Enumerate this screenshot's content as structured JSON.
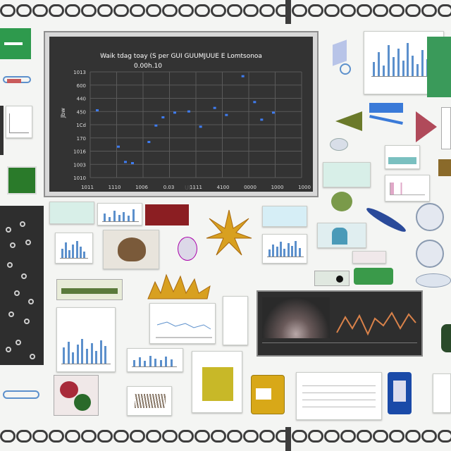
{
  "main_chart": {
    "title_line1": "Waik tdag toay (S per GUI GUUMJUUE E Lomtsonoa",
    "title_line2": "0.00h.10",
    "y_ticks": [
      "1013",
      "600",
      "440",
      "450",
      "1Cd",
      "170",
      "1016",
      "1003",
      "1010"
    ],
    "x_ticks": [
      "1011",
      "1110",
      "1006",
      "0.03",
      "1111",
      "4100",
      "0000",
      "1000",
      "1000"
    ],
    "y_axis_label": "Jbw",
    "x_axis_label": "Ubu",
    "point_color": "#3f7cf0"
  },
  "chart_data": {
    "type": "scatter",
    "title": "Waik tdag toay (S per GUI GUUMJUUE E Lomtsonoa 0.00h.10",
    "xlabel": "Ubu",
    "ylabel": "Jbw",
    "xlim": [
      0,
      9
    ],
    "ylim": [
      0,
      9
    ],
    "points": [
      {
        "x": 0.3,
        "y": 5.7
      },
      {
        "x": 1.2,
        "y": 2.6
      },
      {
        "x": 1.5,
        "y": 1.3
      },
      {
        "x": 1.8,
        "y": 1.2
      },
      {
        "x": 2.5,
        "y": 3.0
      },
      {
        "x": 2.8,
        "y": 4.4
      },
      {
        "x": 3.1,
        "y": 5.1
      },
      {
        "x": 3.6,
        "y": 5.5
      },
      {
        "x": 4.2,
        "y": 5.6
      },
      {
        "x": 4.7,
        "y": 4.3
      },
      {
        "x": 5.3,
        "y": 5.9
      },
      {
        "x": 5.8,
        "y": 5.3
      },
      {
        "x": 6.5,
        "y": 8.6
      },
      {
        "x": 7.0,
        "y": 6.4
      },
      {
        "x": 7.3,
        "y": 4.9
      },
      {
        "x": 7.8,
        "y": 5.5
      }
    ],
    "grid": true
  },
  "colors": {
    "background": "#f4f5f3",
    "chain": "#3d3d3d",
    "dark_panel": "#2e2e2e",
    "bar_blue": "#5c90cc",
    "green_tile": "#2e9a4d",
    "red_tile": "#8b1e22",
    "orange_line": "#d9824a"
  },
  "icons": [
    "chain-border",
    "flower-image",
    "shell-image",
    "blue-wing-image",
    "green-bottle-image",
    "leaf-image"
  ]
}
